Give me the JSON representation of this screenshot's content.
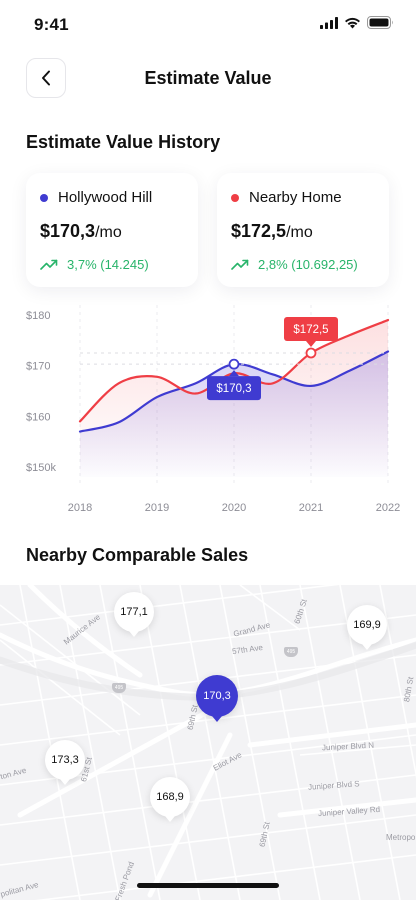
{
  "status_bar": {
    "time": "9:41"
  },
  "header": {
    "title": "Estimate Value"
  },
  "history": {
    "title": "Estimate Value History",
    "cards": [
      {
        "name": "Hollywood Hill",
        "price": "$170,3",
        "unit": "/mo",
        "change": "3,7% (14.245)",
        "color": "#3f3bd1"
      },
      {
        "name": "Nearby Home",
        "price": "$172,5",
        "unit": "/mo",
        "change": "2,8% (10.692,25)",
        "color": "#ef3e45"
      }
    ]
  },
  "chart_data": {
    "type": "line",
    "x": [
      2018,
      2019,
      2020,
      2021,
      2022
    ],
    "xlabels": [
      "2018",
      "2019",
      "2020",
      "2021",
      "2022"
    ],
    "ylabels": [
      "$180",
      "$170",
      "$160",
      "$150k"
    ],
    "yticks": [
      180,
      170,
      160,
      150
    ],
    "ylim": [
      150,
      180
    ],
    "xlim": [
      2018,
      2022
    ],
    "series": [
      {
        "color": "#3f3bd1",
        "x": [
          2018,
          2018.5,
          2019,
          2019.5,
          2020,
          2020.5,
          2021,
          2021.5,
          2022
        ],
        "values": [
          157,
          158.8,
          163.8,
          166.5,
          170.3,
          168.3,
          166.0,
          169.0,
          172.8
        ]
      },
      {
        "color": "#ef3e45",
        "x": [
          2018,
          2018.5,
          2019,
          2019.5,
          2020,
          2020.5,
          2021,
          2021.5,
          2022
        ],
        "values": [
          159,
          166.5,
          167.8,
          164.5,
          168.5,
          166.5,
          172.5,
          176.0,
          179.0
        ]
      }
    ],
    "tooltips": [
      {
        "series": 0,
        "x": 2020,
        "value": 170.3,
        "label": "$170,3",
        "color": "#3f3bd1"
      },
      {
        "series": 1,
        "x": 2021,
        "value": 172.5,
        "label": "$172,5",
        "color": "#ef3e45"
      }
    ]
  },
  "nearby": {
    "title": "Nearby Comparable Sales",
    "markers": [
      {
        "label": "177,1",
        "active": false
      },
      {
        "label": "169,9",
        "active": false
      },
      {
        "label": "170,3",
        "active": true
      },
      {
        "label": "173,3",
        "active": false
      },
      {
        "label": "168,9",
        "active": false
      }
    ],
    "streets": [
      "Maurice Ave",
      "Grand Ave",
      "57th Ave",
      "60th St",
      "69th St",
      "Juniper Blvd N",
      "Juniper Blvd S",
      "Juniper Valley Rd",
      "Eliot Ave",
      "69th St",
      "61st St",
      "Fresh Pond",
      "Metropo",
      "ton Ave",
      "politan Ave",
      "80th St"
    ],
    "route_shields": [
      "495",
      "495"
    ]
  }
}
